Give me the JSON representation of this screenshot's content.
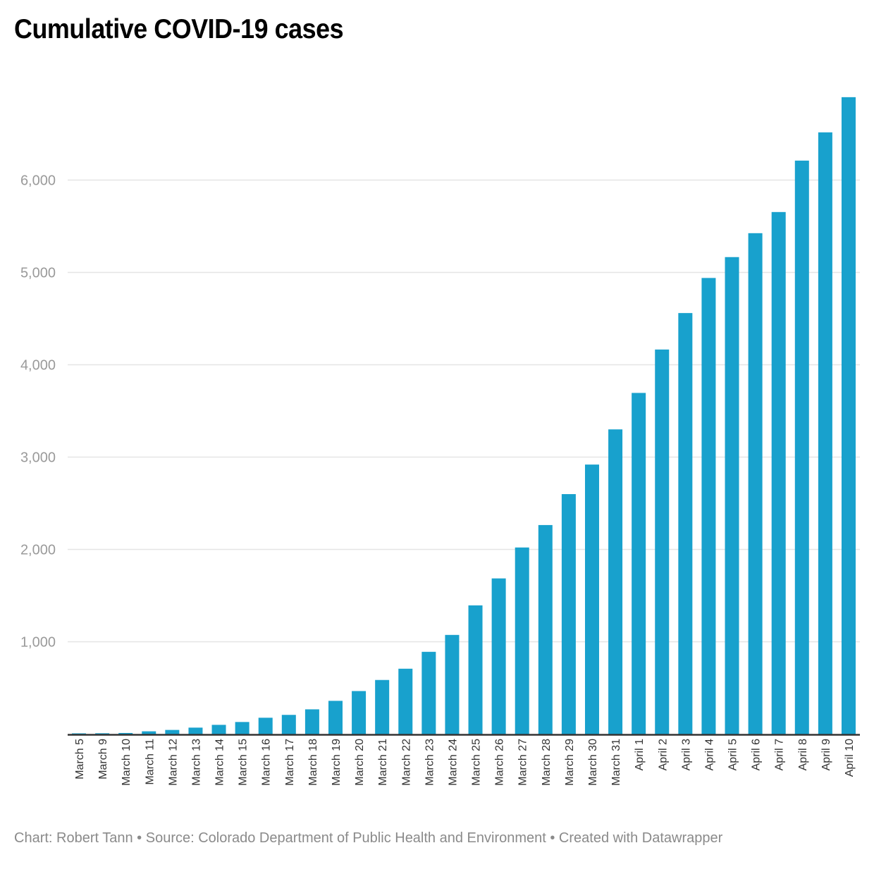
{
  "colors": {
    "bar": "#18a1cd",
    "grid": "#e5e5e5",
    "axis": "#333333",
    "ytick_text": "#9a9a9a",
    "xtick_text": "#333333",
    "footer_text": "#8a8a8a"
  },
  "footer": {
    "text": "Chart: Robert Tann • Source: Colorado Department of Public Health and Environment • Created with Datawrapper"
  },
  "chart_data": {
    "type": "bar",
    "title": "Cumulative COVID-19 cases",
    "xlabel": "",
    "ylabel": "",
    "ylim": [
      0,
      7000
    ],
    "yticks": [
      1000,
      2000,
      3000,
      4000,
      5000,
      6000
    ],
    "ytick_labels": [
      "1,000",
      "2,000",
      "3,000",
      "4,000",
      "5,000",
      "6,000"
    ],
    "grid": true,
    "legend": "none",
    "categories": [
      "March 5",
      "March 9",
      "March 10",
      "March 11",
      "March 12",
      "March 13",
      "March 14",
      "March 15",
      "March 16",
      "March 17",
      "March 18",
      "March 19",
      "March 20",
      "March 21",
      "March 22",
      "March 23",
      "March 24",
      "March 25",
      "March 26",
      "March 27",
      "March 28",
      "March 29",
      "March 30",
      "March 31",
      "April 1",
      "April 2",
      "April 3",
      "April 4",
      "April 5",
      "April 6",
      "April 7",
      "April 8",
      "April 9",
      "April 10"
    ],
    "values": [
      8,
      9,
      12,
      30,
      45,
      70,
      100,
      131,
      177,
      208,
      268,
      360,
      466,
      586,
      708,
      891,
      1074,
      1394,
      1686,
      2021,
      2264,
      2599,
      2919,
      3300,
      3695,
      4165,
      4560,
      4940,
      5166,
      5425,
      5654,
      6211,
      6517,
      6898
    ]
  }
}
